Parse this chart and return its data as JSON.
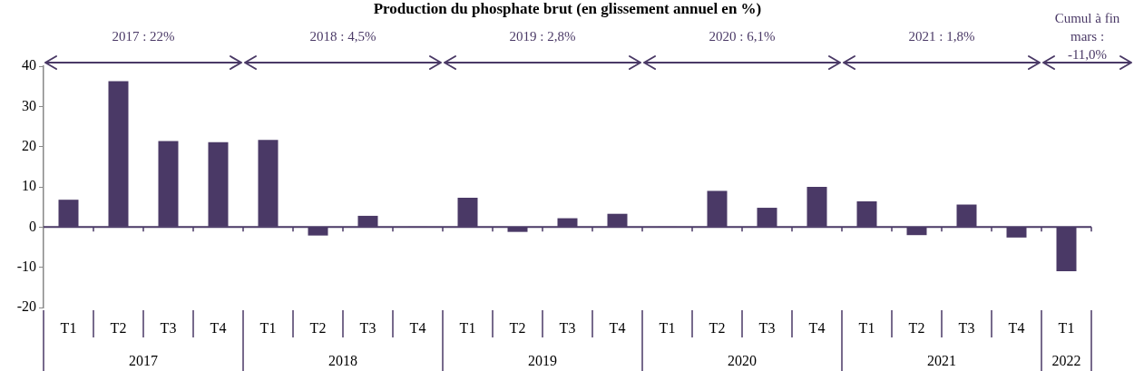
{
  "chart_data": {
    "type": "bar",
    "title": "Production du phosphate brut (en glissement annuel en %)",
    "categories": [
      "T1",
      "T2",
      "T3",
      "T4",
      "T1",
      "T2",
      "T3",
      "T4",
      "T1",
      "T2",
      "T3",
      "T4",
      "T1",
      "T2",
      "T3",
      "T4",
      "T1",
      "T2",
      "T3",
      "T4",
      "T1"
    ],
    "values": [
      6.8,
      36.3,
      21.4,
      21.1,
      21.7,
      -2.1,
      2.8,
      0.1,
      7.3,
      -1.2,
      2.2,
      3.3,
      0.1,
      9.0,
      4.8,
      10.0,
      6.4,
      -2.0,
      5.6,
      -2.6,
      -11.0
    ],
    "color": "#4a3966",
    "ref_lines": [
      {
        "axis": "y",
        "value": 0,
        "color": "#4a3966"
      }
    ],
    "ylim": [
      -20,
      40
    ],
    "yticks": [
      -20,
      -10,
      0,
      10,
      20,
      30,
      40
    ],
    "grid": false,
    "legend": false,
    "annotations": [
      "2017 : 22%",
      "2018 : 4,5%",
      "2019 : 2,8%",
      "2020 : 6,1%",
      "2021 : 1,8%",
      "Cumul à fin mars : -11,0%",
      "2017",
      "2018",
      "2019",
      "2020",
      "2021",
      "2022"
    ]
  }
}
